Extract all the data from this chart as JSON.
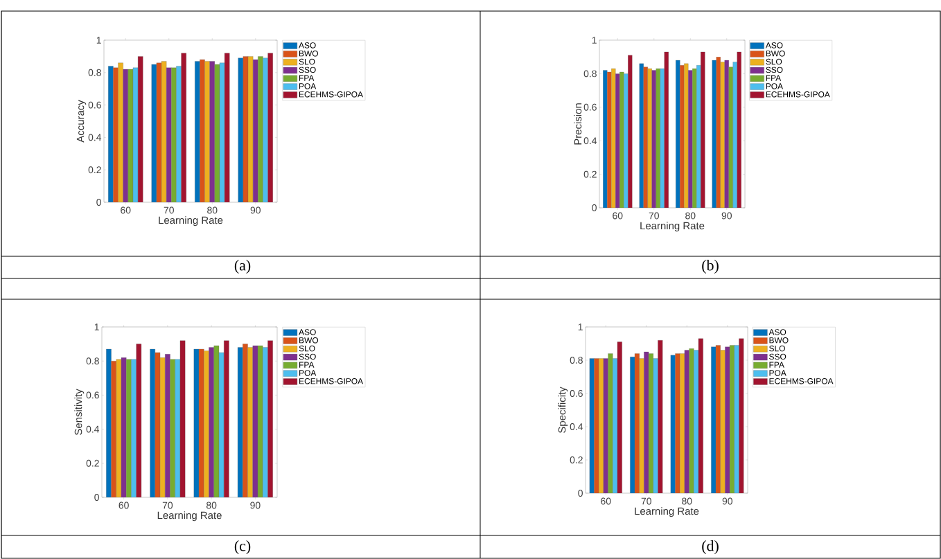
{
  "chart_data": [
    {
      "type": "bar",
      "xlabel": "Learning Rate",
      "ylabel": "Accuracy",
      "categories": [
        "60",
        "70",
        "80",
        "90"
      ],
      "ylim": [
        0,
        1
      ],
      "yticks": [
        0,
        0.2,
        0.4,
        0.6,
        0.8,
        1
      ],
      "legend": "right",
      "annotations": [
        "(a)"
      ],
      "series": [
        {
          "name": "ASO",
          "color": "#0072bd",
          "values": [
            0.84,
            0.85,
            0.87,
            0.89
          ]
        },
        {
          "name": "BWO",
          "color": "#d95319",
          "values": [
            0.83,
            0.86,
            0.88,
            0.9
          ]
        },
        {
          "name": "SLO",
          "color": "#edb120",
          "values": [
            0.86,
            0.87,
            0.87,
            0.9
          ]
        },
        {
          "name": "SSO",
          "color": "#7e2f8e",
          "values": [
            0.82,
            0.83,
            0.87,
            0.88
          ]
        },
        {
          "name": "FPA",
          "color": "#77ac30",
          "values": [
            0.82,
            0.83,
            0.85,
            0.9
          ]
        },
        {
          "name": "POA",
          "color": "#4dbeee",
          "values": [
            0.83,
            0.84,
            0.86,
            0.89
          ]
        },
        {
          "name": "ECEHMS-GIPOA",
          "color": "#a2142f",
          "values": [
            0.9,
            0.92,
            0.92,
            0.92
          ]
        }
      ]
    },
    {
      "type": "bar",
      "xlabel": "Learning Rate",
      "ylabel": "Precision",
      "categories": [
        "60",
        "70",
        "80",
        "90"
      ],
      "ylim": [
        0,
        1
      ],
      "yticks": [
        0,
        0.2,
        0.4,
        0.6,
        0.8,
        1
      ],
      "legend": "right",
      "annotations": [
        "(b)"
      ],
      "series": [
        {
          "name": "ASO",
          "color": "#0072bd",
          "values": [
            0.82,
            0.86,
            0.88,
            0.88
          ]
        },
        {
          "name": "BWO",
          "color": "#d95319",
          "values": [
            0.81,
            0.84,
            0.85,
            0.9
          ]
        },
        {
          "name": "SLO",
          "color": "#edb120",
          "values": [
            0.83,
            0.83,
            0.86,
            0.87
          ]
        },
        {
          "name": "SSO",
          "color": "#7e2f8e",
          "values": [
            0.8,
            0.82,
            0.82,
            0.88
          ]
        },
        {
          "name": "FPA",
          "color": "#77ac30",
          "values": [
            0.81,
            0.83,
            0.83,
            0.84
          ]
        },
        {
          "name": "POA",
          "color": "#4dbeee",
          "values": [
            0.8,
            0.83,
            0.85,
            0.87
          ]
        },
        {
          "name": "ECEHMS-GIPOA",
          "color": "#a2142f",
          "values": [
            0.91,
            0.93,
            0.93,
            0.93
          ]
        }
      ]
    },
    {
      "type": "bar",
      "xlabel": "Learning Rate",
      "ylabel": "Sensitivity",
      "categories": [
        "60",
        "70",
        "80",
        "90"
      ],
      "ylim": [
        0,
        1
      ],
      "yticks": [
        0,
        0.2,
        0.4,
        0.6,
        0.8,
        1
      ],
      "legend": "right",
      "annotations": [
        "(c)"
      ],
      "series": [
        {
          "name": "ASO",
          "color": "#0072bd",
          "values": [
            0.87,
            0.87,
            0.87,
            0.88
          ]
        },
        {
          "name": "BWO",
          "color": "#d95319",
          "values": [
            0.8,
            0.85,
            0.87,
            0.9
          ]
        },
        {
          "name": "SLO",
          "color": "#edb120",
          "values": [
            0.81,
            0.82,
            0.86,
            0.88
          ]
        },
        {
          "name": "SSO",
          "color": "#7e2f8e",
          "values": [
            0.82,
            0.84,
            0.88,
            0.89
          ]
        },
        {
          "name": "FPA",
          "color": "#77ac30",
          "values": [
            0.81,
            0.81,
            0.89,
            0.89
          ]
        },
        {
          "name": "POA",
          "color": "#4dbeee",
          "values": [
            0.81,
            0.81,
            0.85,
            0.88
          ]
        },
        {
          "name": "ECEHMS-GIPOA",
          "color": "#a2142f",
          "values": [
            0.9,
            0.92,
            0.92,
            0.92
          ]
        }
      ]
    },
    {
      "type": "bar",
      "xlabel": "Learning Rate",
      "ylabel": "Specificity",
      "categories": [
        "60",
        "70",
        "80",
        "90"
      ],
      "ylim": [
        0,
        1
      ],
      "yticks": [
        0,
        0.2,
        0.4,
        0.6,
        0.8,
        1
      ],
      "legend": "right",
      "annotations": [
        "(d)"
      ],
      "series": [
        {
          "name": "ASO",
          "color": "#0072bd",
          "values": [
            0.81,
            0.82,
            0.83,
            0.88
          ]
        },
        {
          "name": "BWO",
          "color": "#d95319",
          "values": [
            0.81,
            0.84,
            0.84,
            0.89
          ]
        },
        {
          "name": "SLO",
          "color": "#edb120",
          "values": [
            0.81,
            0.81,
            0.84,
            0.86
          ]
        },
        {
          "name": "SSO",
          "color": "#7e2f8e",
          "values": [
            0.81,
            0.85,
            0.86,
            0.88
          ]
        },
        {
          "name": "FPA",
          "color": "#77ac30",
          "values": [
            0.84,
            0.84,
            0.87,
            0.89
          ]
        },
        {
          "name": "POA",
          "color": "#4dbeee",
          "values": [
            0.81,
            0.81,
            0.86,
            0.89
          ]
        },
        {
          "name": "ECEHMS-GIPOA",
          "color": "#a2142f",
          "values": [
            0.91,
            0.92,
            0.93,
            0.93
          ]
        }
      ]
    }
  ]
}
